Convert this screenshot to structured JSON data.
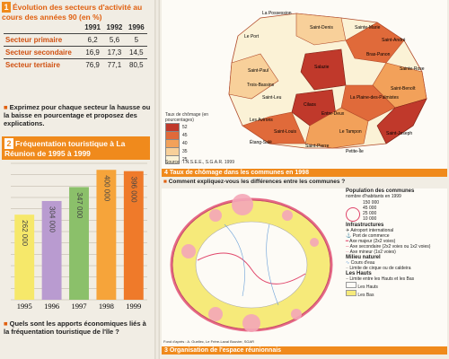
{
  "section1": {
    "number": "1",
    "title": "Évolution des secteurs d'activité au cours des années 90 (en %)",
    "years": [
      "1991",
      "1992",
      "1996"
    ],
    "rows": [
      {
        "label": "Secteur primaire",
        "values": [
          "6,2",
          "5,6",
          "5"
        ]
      },
      {
        "label": "Secteur secondaire",
        "values": [
          "16,9",
          "17,3",
          "14,5"
        ]
      },
      {
        "label": "Secteur tertiaire",
        "values": [
          "76,9",
          "77,1",
          "80,5"
        ]
      }
    ],
    "question": "Exprimez pour chaque secteur la hausse ou la baisse en pourcentage et proposez des explications."
  },
  "section2": {
    "number": "2",
    "title": "Fréquentation touristique à La Réunion de 1995 à 1999",
    "question": "Quels sont les apports économiques liés à la fréquentation touristique de l'île ?"
  },
  "chart_data": {
    "type": "bar",
    "categories": [
      "1995",
      "1996",
      "1997",
      "1998",
      "1999"
    ],
    "values": [
      262000,
      304000,
      347000,
      400000,
      396000
    ],
    "labels": [
      "262 000",
      "304 000",
      "347 000",
      "400 000",
      "396 000"
    ],
    "colors": [
      "#f6e86a",
      "#b99bd0",
      "#8bc06a",
      "#f6a43a",
      "#ef7a2a"
    ]
  },
  "map1": {
    "number": "4",
    "caption": "Taux de chômage dans les communes en 1998",
    "question": "Comment expliquez-vous les différences entre les communes ?",
    "source": "Source : I.N.S.E.E., S.G.A.R. 1999",
    "legend_title": "Taux de chômage (en pourcentages)",
    "legend_values": [
      "52",
      "45",
      "40",
      "35",
      "25"
    ],
    "legend_colors": [
      "#c0392b",
      "#e06a3a",
      "#f2a15a",
      "#f8d09a",
      "#fbf2d6"
    ],
    "communes": [
      "La Possession",
      "Saint-Denis",
      "Le Port",
      "Sainte-Marie",
      "Sainte-Suzanne",
      "Saint-André",
      "Salazie",
      "Bras-Panon",
      "Saint-Paul",
      "Saint-Benoît",
      "Trois-Bassins",
      "Cilaos",
      "La Plaine-des-Palmistes",
      "Saint-Leu",
      "Entre-Deux",
      "Les Avirons",
      "Le Tampon",
      "Saint-Louis",
      "Sainte-Rose",
      "Étang-Salé",
      "Saint-Pierre",
      "Petite-Île",
      "Saint-Joseph",
      "Saint-Philippe"
    ]
  },
  "map2": {
    "number": "3",
    "caption": "Organisation de l'espace réunionnais",
    "source": "Fond d'après : A. Guellec, Le Frère-Laval Bouvier, SGAR",
    "legend": {
      "population_title": "Population des communes",
      "population_sub": "nombre d'habitants en 1999",
      "population_values": [
        "150 000",
        "45 000",
        "25 000",
        "10 000"
      ],
      "infra_title": "Infrastructures",
      "infra_items": [
        "Aéroport international",
        "Port de commerce",
        "Axe majeur (2x2 voies)",
        "Axe secondaire (2x2 voies ou 1x2 voies)",
        "Axe mineur (1x2 voies)"
      ],
      "milieu_title": "Milieu naturel",
      "milieu_items": [
        "Cours d'eau",
        "Limite de cirque ou de caldeira"
      ],
      "hauts_title": "Les Hauts",
      "hauts_items": [
        "Limite entre les Hauts et les Bas",
        "Les Hauts",
        "Les Bas"
      ]
    }
  }
}
